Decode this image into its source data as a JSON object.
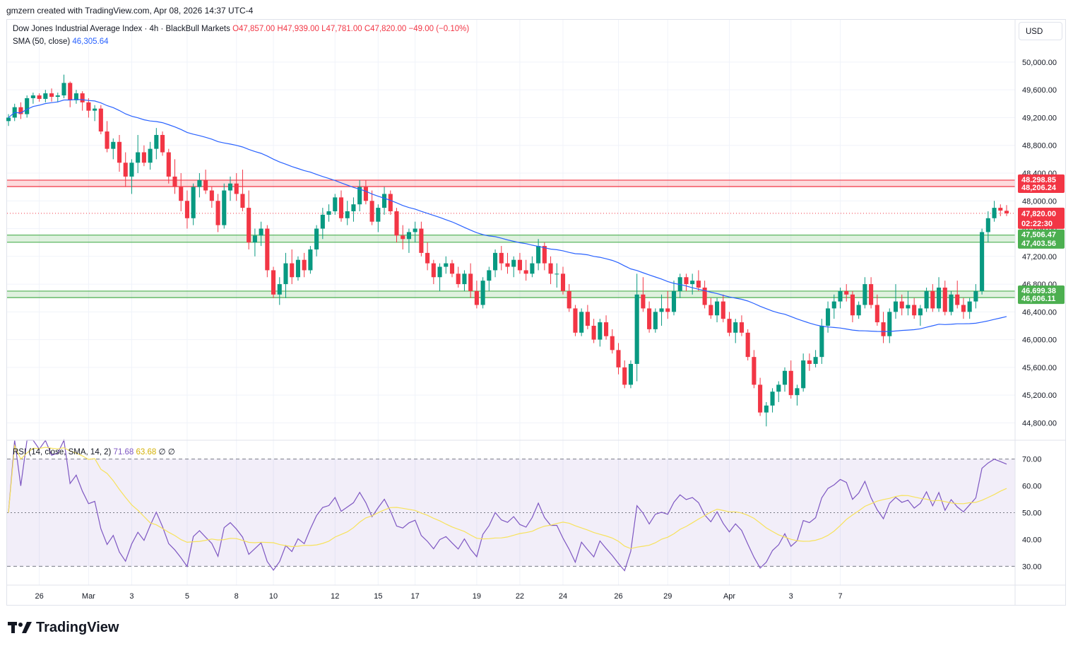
{
  "header": {
    "created_by": "gmzern created with TradingView.com, Apr 08, 2026 14:37 UTC-4"
  },
  "legend": {
    "symbol": "Dow Jones Industrial Average Index · 4h · BlackBull Markets",
    "open": "O47,857.00",
    "high": "H47,939.00",
    "low": "L47,781.00",
    "close": "C47,820.00",
    "change": "−49.00 (−0.10%)",
    "sma_label": "SMA (50, close)",
    "sma_value": "46,305.64",
    "rsi_label": "RSI (14, close, SMA, 14, 2)",
    "rsi_value": "71.68",
    "rsi_sma_value": "63.68",
    "rsi_extra1": "∅",
    "rsi_extra2": "∅"
  },
  "currency": "USD",
  "brand": "TradingView",
  "colors": {
    "up": "#089981",
    "down": "#f23645",
    "sma": "#2962ff",
    "rsi": "#7e57c2",
    "rsi_sma": "#f7e25c",
    "resistance_zone": "#f23645",
    "support_zone": "#4caf50"
  },
  "chart_data": {
    "type": "candlestick",
    "price_axis": {
      "ticks": [
        44800,
        45200,
        45600,
        46000,
        46400,
        46800,
        47200,
        47600,
        48000,
        48400,
        48800,
        49200,
        49600,
        50000
      ],
      "tick_labels": [
        "44,800.00",
        "45,200.00",
        "45,600.00",
        "46,000.00",
        "46,400.00",
        "46,800.00",
        "47,200.00",
        "47,600.00",
        "48,000.00",
        "48,400.00",
        "48,800.00",
        "49,200.00",
        "49,600.00",
        "50,000.00"
      ],
      "range": [
        44560,
        50610
      ]
    },
    "time_axis": {
      "labels": [
        {
          "text": "26",
          "bar": 5
        },
        {
          "text": "Mar",
          "bar": 13
        },
        {
          "text": "3",
          "bar": 20
        },
        {
          "text": "5",
          "bar": 29
        },
        {
          "text": "8",
          "bar": 37
        },
        {
          "text": "10",
          "bar": 43
        },
        {
          "text": "12",
          "bar": 53
        },
        {
          "text": "15",
          "bar": 60
        },
        {
          "text": "17",
          "bar": 66
        },
        {
          "text": "19",
          "bar": 76
        },
        {
          "text": "22",
          "bar": 83
        },
        {
          "text": "24",
          "bar": 90
        },
        {
          "text": "26",
          "bar": 99
        },
        {
          "text": "29",
          "bar": 107
        },
        {
          "text": "Apr",
          "bar": 117
        },
        {
          "text": "3",
          "bar": 127
        },
        {
          "text": "7",
          "bar": 135
        }
      ]
    },
    "zones": [
      {
        "name": "resistance",
        "top": 48298.85,
        "bottom": 48206.24,
        "top_label": "48,298.85",
        "bottom_label": "48,206.24"
      },
      {
        "name": "support-upper",
        "top": 47506.47,
        "bottom": 47403.56,
        "top_label": "47,506.47",
        "bottom_label": "47,403.56"
      },
      {
        "name": "support-lower",
        "top": 46699.38,
        "bottom": 46606.11,
        "top_label": "46,699.38",
        "bottom_label": "46,606.11"
      }
    ],
    "last_price": {
      "value": 47820.0,
      "label": "47,820.00",
      "countdown": "02:22:30"
    },
    "candles": [
      [
        49150,
        49250,
        49080,
        49200
      ],
      [
        49200,
        49400,
        49150,
        49350
      ],
      [
        49350,
        49420,
        49180,
        49250
      ],
      [
        49250,
        49520,
        49200,
        49480
      ],
      [
        49480,
        49560,
        49400,
        49520
      ],
      [
        49520,
        49550,
        49430,
        49470
      ],
      [
        49470,
        49600,
        49420,
        49550
      ],
      [
        49550,
        49620,
        49430,
        49500
      ],
      [
        49500,
        49560,
        49420,
        49520
      ],
      [
        49520,
        49820,
        49480,
        49700
      ],
      [
        49700,
        49720,
        49350,
        49450
      ],
      [
        49450,
        49600,
        49400,
        49550
      ],
      [
        49550,
        49580,
        49300,
        49420
      ],
      [
        49420,
        49480,
        49200,
        49300
      ],
      [
        49300,
        49380,
        49150,
        49330
      ],
      [
        49330,
        49380,
        48960,
        49000
      ],
      [
        49000,
        49150,
        48700,
        48750
      ],
      [
        48750,
        48900,
        48600,
        48850
      ],
      [
        48850,
        48950,
        48420,
        48550
      ],
      [
        48550,
        48700,
        48200,
        48350
      ],
      [
        48350,
        48600,
        48100,
        48550
      ],
      [
        48550,
        48950,
        48400,
        48700
      ],
      [
        48700,
        48800,
        48500,
        48550
      ],
      [
        48550,
        48850,
        48450,
        48750
      ],
      [
        48750,
        49050,
        48600,
        48950
      ],
      [
        48950,
        49000,
        48650,
        48700
      ],
      [
        48700,
        48750,
        48250,
        48350
      ],
      [
        48350,
        48600,
        48100,
        48200
      ],
      [
        48200,
        48400,
        47850,
        48000
      ],
      [
        48000,
        48150,
        47600,
        47750
      ],
      [
        47750,
        48250,
        47650,
        48200
      ],
      [
        48200,
        48400,
        48050,
        48300
      ],
      [
        48300,
        48450,
        48100,
        48150
      ],
      [
        48150,
        48200,
        47900,
        48000
      ],
      [
        48000,
        48100,
        47550,
        47650
      ],
      [
        47650,
        48250,
        47600,
        48150
      ],
      [
        48150,
        48350,
        48000,
        48250
      ],
      [
        48250,
        48400,
        48000,
        48100
      ],
      [
        48100,
        48450,
        47850,
        47900
      ],
      [
        47900,
        48150,
        47300,
        47400
      ],
      [
        47400,
        47600,
        47200,
        47500
      ],
      [
        47500,
        47700,
        47350,
        47600
      ],
      [
        47600,
        47650,
        46900,
        47000
      ],
      [
        47000,
        47050,
        46600,
        46650
      ],
      [
        46650,
        46900,
        46500,
        46800
      ],
      [
        46800,
        47250,
        46600,
        47100
      ],
      [
        47100,
        47300,
        46800,
        46900
      ],
      [
        46900,
        47200,
        46850,
        47150
      ],
      [
        47150,
        47250,
        46900,
        47000
      ],
      [
        47000,
        47350,
        46950,
        47300
      ],
      [
        47300,
        47650,
        47200,
        47600
      ],
      [
        47600,
        47900,
        47450,
        47800
      ],
      [
        47800,
        47950,
        47700,
        47850
      ],
      [
        47850,
        48100,
        47800,
        48050
      ],
      [
        48050,
        48150,
        47700,
        47750
      ],
      [
        47750,
        48000,
        47650,
        47850
      ],
      [
        47850,
        48050,
        47700,
        47950
      ],
      [
        47950,
        48300,
        47850,
        48200
      ],
      [
        48200,
        48300,
        47950,
        48000
      ],
      [
        48000,
        48150,
        47650,
        47700
      ],
      [
        47700,
        47950,
        47550,
        47900
      ],
      [
        47900,
        48200,
        47800,
        48100
      ],
      [
        48100,
        48150,
        47800,
        47850
      ],
      [
        47850,
        47900,
        47400,
        47500
      ],
      [
        47500,
        47650,
        47300,
        47450
      ],
      [
        47450,
        47600,
        47250,
        47550
      ],
      [
        47550,
        47700,
        47400,
        47600
      ],
      [
        47600,
        47700,
        47200,
        47250
      ],
      [
        47250,
        47400,
        47000,
        47100
      ],
      [
        47100,
        47150,
        46800,
        46900
      ],
      [
        46900,
        47100,
        46700,
        47050
      ],
      [
        47050,
        47200,
        46950,
        47100
      ],
      [
        47100,
        47150,
        46900,
        46950
      ],
      [
        46950,
        47050,
        46750,
        46800
      ],
      [
        46800,
        47000,
        46700,
        46950
      ],
      [
        46950,
        47100,
        46600,
        46700
      ],
      [
        46700,
        46850,
        46450,
        46500
      ],
      [
        46500,
        46900,
        46450,
        46850
      ],
      [
        46850,
        47050,
        46700,
        47000
      ],
      [
        47000,
        47300,
        46900,
        47250
      ],
      [
        47250,
        47350,
        47000,
        47100
      ],
      [
        47100,
        47250,
        46950,
        47050
      ],
      [
        47050,
        47200,
        46900,
        47150
      ],
      [
        47150,
        47250,
        46950,
        47000
      ],
      [
        47000,
        47150,
        46850,
        46950
      ],
      [
        46950,
        47200,
        46900,
        47100
      ],
      [
        47100,
        47450,
        47000,
        47350
      ],
      [
        47350,
        47400,
        47000,
        47100
      ],
      [
        47100,
        47200,
        46800,
        46950
      ],
      [
        46950,
        47100,
        46750,
        46950
      ],
      [
        46950,
        47050,
        46650,
        46700
      ],
      [
        46700,
        46800,
        46400,
        46450
      ],
      [
        46450,
        46500,
        46050,
        46100
      ],
      [
        46100,
        46450,
        46050,
        46400
      ],
      [
        46400,
        46500,
        46150,
        46200
      ],
      [
        46200,
        46300,
        45950,
        46000
      ],
      [
        46000,
        46300,
        45900,
        46250
      ],
      [
        46250,
        46350,
        46000,
        46050
      ],
      [
        46050,
        46150,
        45800,
        45850
      ],
      [
        45850,
        45950,
        45500,
        45600
      ],
      [
        45600,
        45700,
        45300,
        45350
      ],
      [
        45350,
        45700,
        45300,
        45650
      ],
      [
        45650,
        46950,
        45400,
        46650
      ],
      [
        46650,
        46900,
        46400,
        46450
      ],
      [
        46450,
        46550,
        46100,
        46150
      ],
      [
        46150,
        46450,
        46100,
        46400
      ],
      [
        46400,
        46650,
        46200,
        46450
      ],
      [
        46450,
        46700,
        46300,
        46400
      ],
      [
        46400,
        46850,
        46350,
        46700
      ],
      [
        46700,
        46950,
        46600,
        46900
      ],
      [
        46900,
        46950,
        46700,
        46800
      ],
      [
        46800,
        46950,
        46650,
        46850
      ],
      [
        46850,
        47000,
        46700,
        46750
      ],
      [
        46750,
        46850,
        46450,
        46500
      ],
      [
        46500,
        46600,
        46300,
        46350
      ],
      [
        46350,
        46600,
        46250,
        46550
      ],
      [
        46550,
        46650,
        46250,
        46300
      ],
      [
        46300,
        46400,
        46050,
        46100
      ],
      [
        46100,
        46300,
        45950,
        46250
      ],
      [
        46250,
        46350,
        46050,
        46100
      ],
      [
        46100,
        46150,
        45700,
        45750
      ],
      [
        45750,
        45850,
        45300,
        45350
      ],
      [
        45350,
        45450,
        44900,
        44950
      ],
      [
        44950,
        45100,
        44750,
        45050
      ],
      [
        45050,
        45300,
        44950,
        45250
      ],
      [
        45250,
        45400,
        45100,
        45350
      ],
      [
        45350,
        45600,
        45250,
        45550
      ],
      [
        45550,
        45700,
        45150,
        45200
      ],
      [
        45200,
        45350,
        45050,
        45300
      ],
      [
        45300,
        45800,
        45250,
        45700
      ],
      [
        45700,
        45800,
        45550,
        45650
      ],
      [
        45650,
        45850,
        45600,
        45750
      ],
      [
        45750,
        46300,
        45650,
        46200
      ],
      [
        46200,
        46550,
        46100,
        46450
      ],
      [
        46450,
        46650,
        46300,
        46550
      ],
      [
        46550,
        46750,
        46450,
        46700
      ],
      [
        46700,
        46800,
        46550,
        46650
      ],
      [
        46650,
        46700,
        46250,
        46350
      ],
      [
        46350,
        46550,
        46300,
        46500
      ],
      [
        46500,
        46900,
        46450,
        46800
      ],
      [
        46800,
        46900,
        46450,
        46500
      ],
      [
        46500,
        46650,
        46200,
        46250
      ],
      [
        46250,
        46400,
        45950,
        46050
      ],
      [
        46050,
        46450,
        45950,
        46400
      ],
      [
        46400,
        46800,
        46300,
        46550
      ],
      [
        46550,
        46650,
        46350,
        46450
      ],
      [
        46450,
        46700,
        46350,
        46500
      ],
      [
        46500,
        46600,
        46300,
        46350
      ],
      [
        46350,
        46500,
        46200,
        46450
      ],
      [
        46450,
        46750,
        46400,
        46700
      ],
      [
        46700,
        46800,
        46400,
        46450
      ],
      [
        46450,
        46900,
        46400,
        46750
      ],
      [
        46750,
        46850,
        46350,
        46400
      ],
      [
        46400,
        46700,
        46350,
        46650
      ]
    ],
    "tail": [
      [
        46650,
        46850,
        46450,
        46500
      ],
      [
        46500,
        46600,
        46300,
        46400
      ],
      [
        46400,
        46600,
        46300,
        46550
      ],
      [
        46550,
        46800,
        46450,
        46700
      ],
      [
        46700,
        47600,
        46650,
        47550
      ],
      [
        47550,
        47850,
        47400,
        47750
      ],
      [
        47750,
        48000,
        47700,
        47900
      ],
      [
        47900,
        47950,
        47780,
        47860
      ],
      [
        47857,
        47939,
        47781,
        47820
      ]
    ],
    "rsi": {
      "ticks": [
        30,
        40,
        50,
        60,
        70
      ],
      "tick_labels": [
        "30.00",
        "40.00",
        "50.00",
        "60.00",
        "70.00"
      ],
      "range": [
        23,
        77
      ],
      "upper_band": 70,
      "lower_band": 30
    }
  }
}
